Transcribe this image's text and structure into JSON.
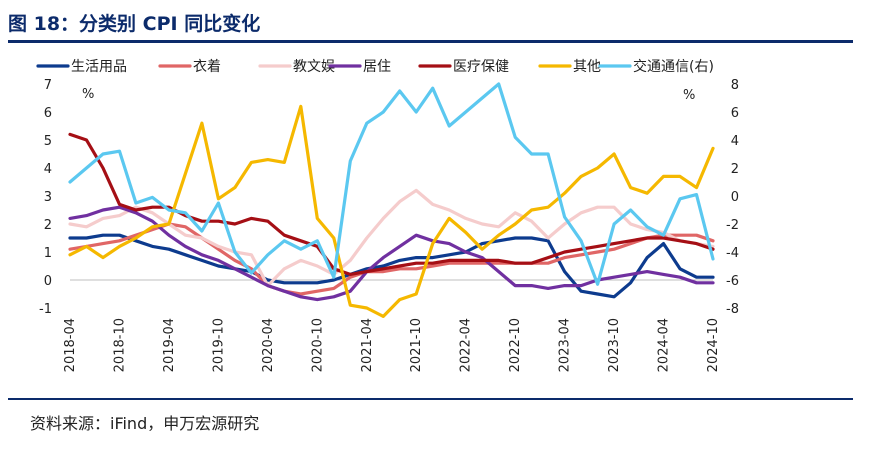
{
  "figure": {
    "title": "图 18：分类别 CPI 同比变化",
    "source": "资料来源：iFind，申万宏源研究"
  },
  "chart_data": {
    "type": "line",
    "left_unit": "%",
    "right_unit": "%",
    "ylim_left": [
      -1,
      7
    ],
    "ylim_right": [
      -8,
      8
    ],
    "left_ticks": [
      "7",
      "6",
      "5",
      "4",
      "3",
      "2",
      "1",
      "0",
      "-1"
    ],
    "right_ticks": [
      "8",
      "6",
      "4",
      "2",
      "0",
      "-2",
      "-4",
      "-6",
      "-8"
    ],
    "x_tick_labels": [
      "2018-04",
      "2018-10",
      "2019-04",
      "2019-10",
      "2020-04",
      "2020-10",
      "2021-04",
      "2021-10",
      "2022-04",
      "2022-10",
      "2023-04",
      "2023-10",
      "2024-04",
      "2024-10"
    ],
    "x": [
      "2018-04",
      "2018-06",
      "2018-08",
      "2018-10",
      "2018-12",
      "2019-02",
      "2019-04",
      "2019-06",
      "2019-08",
      "2019-10",
      "2019-12",
      "2020-02",
      "2020-04",
      "2020-06",
      "2020-08",
      "2020-10",
      "2020-12",
      "2021-02",
      "2021-04",
      "2021-06",
      "2021-08",
      "2021-10",
      "2021-12",
      "2022-02",
      "2022-04",
      "2022-06",
      "2022-08",
      "2022-10",
      "2022-12",
      "2023-02",
      "2023-04",
      "2023-06",
      "2023-08",
      "2023-10",
      "2023-12",
      "2024-02",
      "2024-04",
      "2024-06",
      "2024-08",
      "2024-10"
    ],
    "series": [
      {
        "name": "生活用品",
        "axis": "left",
        "color": "#0d3b8e",
        "values": [
          1.5,
          1.5,
          1.6,
          1.6,
          1.4,
          1.2,
          1.1,
          0.9,
          0.7,
          0.5,
          0.4,
          0.3,
          0.0,
          -0.1,
          -0.1,
          -0.1,
          0.0,
          0.2,
          0.4,
          0.5,
          0.7,
          0.8,
          0.8,
          0.9,
          1.0,
          1.3,
          1.4,
          1.5,
          1.5,
          1.4,
          0.3,
          -0.4,
          -0.5,
          -0.6,
          -0.1,
          0.8,
          1.3,
          0.4,
          0.1,
          0.1
        ]
      },
      {
        "name": "衣着",
        "axis": "left",
        "color": "#e06666",
        "values": [
          1.1,
          1.2,
          1.3,
          1.4,
          1.6,
          1.8,
          2.0,
          1.9,
          1.5,
          1.1,
          0.7,
          0.4,
          -0.2,
          -0.4,
          -0.5,
          -0.4,
          -0.3,
          0.1,
          0.3,
          0.3,
          0.4,
          0.4,
          0.5,
          0.6,
          0.6,
          0.6,
          0.6,
          0.6,
          0.6,
          0.6,
          0.8,
          0.9,
          1.0,
          1.1,
          1.3,
          1.5,
          1.6,
          1.6,
          1.6,
          1.4
        ]
      },
      {
        "name": "教文娱",
        "axis": "left",
        "color": "#f5cccc",
        "values": [
          2.0,
          1.9,
          2.2,
          2.3,
          2.6,
          2.4,
          2.0,
          1.6,
          1.5,
          1.2,
          1.0,
          0.9,
          -0.2,
          0.4,
          0.7,
          0.5,
          0.2,
          0.7,
          1.5,
          2.2,
          2.8,
          3.2,
          2.7,
          2.5,
          2.2,
          2.0,
          1.9,
          2.4,
          2.1,
          1.5,
          2.0,
          2.4,
          2.6,
          2.6,
          2.0,
          1.8,
          1.7,
          1.4,
          1.3,
          1.2
        ]
      },
      {
        "name": "居住",
        "axis": "left",
        "color": "#7030a0",
        "values": [
          2.2,
          2.3,
          2.5,
          2.6,
          2.4,
          2.1,
          1.6,
          1.2,
          0.9,
          0.7,
          0.4,
          0.1,
          -0.2,
          -0.4,
          -0.6,
          -0.7,
          -0.6,
          -0.4,
          0.3,
          0.8,
          1.2,
          1.6,
          1.4,
          1.3,
          1.0,
          0.8,
          0.3,
          -0.2,
          -0.2,
          -0.3,
          -0.2,
          -0.2,
          0.0,
          0.1,
          0.2,
          0.3,
          0.2,
          0.1,
          -0.1,
          -0.1
        ]
      },
      {
        "name": "医疗保健",
        "axis": "left",
        "color": "#a50f15",
        "values": [
          5.2,
          5.0,
          4.0,
          2.7,
          2.5,
          2.6,
          2.6,
          2.3,
          2.1,
          2.1,
          2.0,
          2.2,
          2.1,
          1.6,
          1.4,
          1.2,
          0.4,
          0.2,
          0.3,
          0.4,
          0.5,
          0.6,
          0.6,
          0.7,
          0.7,
          0.7,
          0.7,
          0.6,
          0.6,
          0.8,
          1.0,
          1.1,
          1.2,
          1.3,
          1.4,
          1.5,
          1.5,
          1.4,
          1.3,
          1.1
        ]
      },
      {
        "name": "其他",
        "axis": "left",
        "color": "#f5b800",
        "values": [
          0.9,
          1.2,
          0.8,
          1.2,
          1.5,
          1.9,
          2.0,
          3.8,
          5.6,
          2.9,
          3.3,
          4.2,
          4.3,
          4.2,
          6.2,
          2.2,
          1.5,
          -0.9,
          -1.0,
          -1.3,
          -0.7,
          -0.5,
          1.3,
          2.2,
          1.7,
          1.1,
          1.6,
          2.0,
          2.5,
          2.6,
          3.1,
          3.7,
          4.0,
          4.5,
          3.3,
          3.1,
          3.7,
          3.7,
          3.3,
          4.7
        ]
      },
      {
        "name": "交通通信(右)",
        "axis": "right",
        "color": "#5bc8f0",
        "values": [
          1.0,
          2.0,
          3.0,
          3.2,
          -0.5,
          -0.1,
          -1.0,
          -1.2,
          -2.5,
          -0.5,
          -4.0,
          -5.5,
          -4.2,
          -3.2,
          -3.8,
          -3.2,
          -5.8,
          2.5,
          5.2,
          6.0,
          7.5,
          6.0,
          7.7,
          5.0,
          6.0,
          7.0,
          8.0,
          4.2,
          3.0,
          3.0,
          -1.5,
          -3.2,
          -6.3,
          -2.0,
          -1.0,
          -2.2,
          -2.8,
          -0.2,
          0.1,
          -4.5
        ]
      }
    ]
  }
}
